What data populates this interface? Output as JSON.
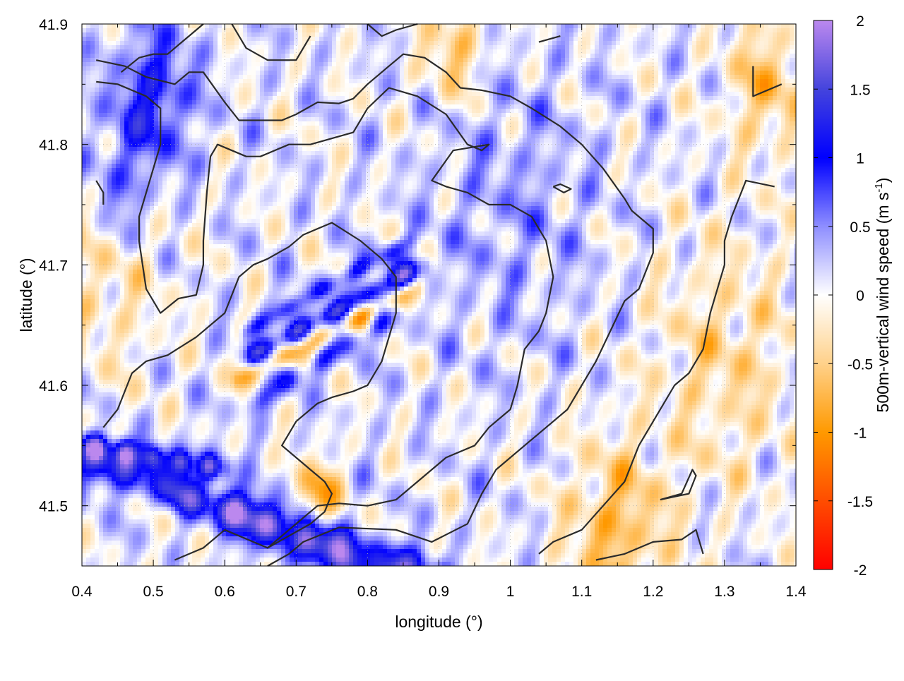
{
  "chart_data": {
    "type": "heatmap",
    "title": "",
    "xlabel": "longitude (°)",
    "ylabel": "latitude (°)",
    "xlim": [
      0.4,
      1.4
    ],
    "ylim": [
      41.45,
      41.9
    ],
    "x_ticks": [
      0.4,
      0.5,
      0.6,
      0.7,
      0.8,
      0.9,
      1.0,
      1.1,
      1.2,
      1.3,
      1.4
    ],
    "y_ticks": [
      41.5,
      41.6,
      41.7,
      41.8,
      41.9
    ],
    "grid": true,
    "colorbar": {
      "label_main": "500m-vertical wind speed (m s",
      "label_sup": "-1",
      "label_end": ")",
      "range": [
        -2,
        2
      ],
      "ticks": [
        -2,
        -1.5,
        -1,
        -0.5,
        0,
        0.5,
        1,
        1.5,
        2
      ],
      "stops": [
        {
          "value": -2,
          "color": "#ff0000"
        },
        {
          "value": -1,
          "color": "#ff9900"
        },
        {
          "value": -0.5,
          "color": "#ffd18a"
        },
        {
          "value": 0,
          "color": "#ffffff"
        },
        {
          "value": 0.5,
          "color": "#8e8eff"
        },
        {
          "value": 1,
          "color": "#0000ff"
        },
        {
          "value": 1.5,
          "color": "#4444dd"
        },
        {
          "value": 2,
          "color": "#bb88ee"
        }
      ]
    },
    "features": [
      {
        "kind": "band",
        "from": [
          0.41,
          41.535
        ],
        "to": [
          0.9,
          41.44
        ],
        "amp": 1.3,
        "width": 0.012
      },
      {
        "kind": "band",
        "from": [
          0.41,
          41.55
        ],
        "to": [
          0.6,
          41.53
        ],
        "amp": 1.6,
        "width": 0.008
      },
      {
        "kind": "band",
        "from": [
          0.6,
          41.5
        ],
        "to": [
          0.85,
          41.43
        ],
        "amp": 1.1,
        "width": 0.012
      },
      {
        "kind": "band",
        "from": [
          0.64,
          41.625
        ],
        "to": [
          0.88,
          41.7
        ],
        "amp": 1.4,
        "width": 0.007
      },
      {
        "kind": "band",
        "from": [
          0.62,
          41.605
        ],
        "to": [
          0.87,
          41.68
        ],
        "amp": -1.0,
        "width": 0.007
      },
      {
        "kind": "band",
        "from": [
          0.63,
          41.645
        ],
        "to": [
          0.86,
          41.72
        ],
        "amp": 0.9,
        "width": 0.006
      },
      {
        "kind": "band",
        "from": [
          0.64,
          41.585
        ],
        "to": [
          0.84,
          41.66
        ],
        "amp": 0.8,
        "width": 0.008
      },
      {
        "kind": "blob",
        "center": [
          1.15,
          41.48
        ],
        "amp": -0.8,
        "width": 0.05
      },
      {
        "kind": "blob",
        "center": [
          0.43,
          41.7
        ],
        "amp": -0.5,
        "width": 0.06
      },
      {
        "kind": "blob",
        "center": [
          1.3,
          41.62
        ],
        "amp": -0.5,
        "width": 0.07
      },
      {
        "kind": "blob",
        "center": [
          0.5,
          41.84
        ],
        "amp": 0.9,
        "width": 0.04
      },
      {
        "kind": "blob",
        "center": [
          0.45,
          41.76
        ],
        "amp": 0.6,
        "width": 0.04
      },
      {
        "kind": "blob",
        "center": [
          0.73,
          41.51
        ],
        "amp": -1.0,
        "width": 0.02
      },
      {
        "kind": "blob",
        "center": [
          0.92,
          41.88
        ],
        "amp": -0.7,
        "width": 0.03
      },
      {
        "kind": "blob",
        "center": [
          1.36,
          41.85
        ],
        "amp": -0.7,
        "width": 0.04
      },
      {
        "kind": "blob",
        "center": [
          1.0,
          41.75
        ],
        "amp": 0.3,
        "width": 0.08
      }
    ],
    "contours": [
      [
        [
          0.42,
          41.87
        ],
        [
          0.46,
          41.865
        ],
        [
          0.49,
          41.856
        ],
        [
          0.53,
          41.85
        ],
        [
          0.55,
          41.86
        ],
        [
          0.57,
          41.86
        ],
        [
          0.6,
          41.835
        ],
        [
          0.62,
          41.82
        ],
        [
          0.66,
          41.82
        ],
        [
          0.68,
          41.82
        ],
        [
          0.7,
          41.825
        ],
        [
          0.73,
          41.835
        ],
        [
          0.76,
          41.834
        ],
        [
          0.78,
          41.838
        ],
        [
          0.8,
          41.85
        ],
        [
          0.83,
          41.865
        ],
        [
          0.85,
          41.875
        ],
        [
          0.88,
          41.872
        ],
        [
          0.91,
          41.86
        ],
        [
          0.93,
          41.847
        ],
        [
          0.96,
          41.845
        ],
        [
          1.0,
          41.84
        ],
        [
          1.03,
          41.83
        ],
        [
          1.07,
          41.815
        ],
        [
          1.1,
          41.8
        ],
        [
          1.13,
          41.78
        ],
        [
          1.16,
          41.755
        ],
        [
          1.17,
          41.745
        ],
        [
          1.2,
          41.73
        ],
        [
          1.2,
          41.71
        ],
        [
          1.18,
          41.68
        ],
        [
          1.16,
          41.67
        ],
        [
          1.12,
          41.62
        ],
        [
          1.08,
          41.58
        ],
        [
          1.04,
          41.56
        ],
        [
          1.02,
          41.55
        ],
        [
          0.98,
          41.53
        ],
        [
          0.96,
          41.51
        ],
        [
          0.94,
          41.485
        ],
        [
          0.89,
          41.47
        ],
        [
          0.84,
          41.48
        ],
        [
          0.76,
          41.482
        ],
        [
          0.71,
          41.47
        ],
        [
          0.69,
          41.46
        ],
        [
          0.66,
          41.45
        ]
      ],
      [
        [
          0.42,
          41.852
        ],
        [
          0.45,
          41.85
        ],
        [
          0.49,
          41.84
        ],
        [
          0.51,
          41.83
        ],
        [
          0.51,
          41.8
        ],
        [
          0.5,
          41.78
        ],
        [
          0.48,
          41.74
        ],
        [
          0.48,
          41.72
        ],
        [
          0.485,
          41.7
        ],
        [
          0.49,
          41.68
        ],
        [
          0.51,
          41.66
        ],
        [
          0.535,
          41.672
        ],
        [
          0.56,
          41.675
        ],
        [
          0.57,
          41.7
        ],
        [
          0.57,
          41.72
        ],
        [
          0.575,
          41.76
        ],
        [
          0.58,
          41.79
        ],
        [
          0.59,
          41.8
        ],
        [
          0.61,
          41.795
        ],
        [
          0.63,
          41.79
        ],
        [
          0.65,
          41.79
        ],
        [
          0.69,
          41.8
        ],
        [
          0.72,
          41.8
        ],
        [
          0.78,
          41.81
        ],
        [
          0.8,
          41.83
        ],
        [
          0.83,
          41.847
        ],
        [
          0.87,
          41.84
        ],
        [
          0.91,
          41.825
        ],
        [
          0.94,
          41.8
        ],
        [
          0.96,
          41.795
        ],
        [
          0.97,
          41.8
        ],
        [
          0.92,
          41.795
        ],
        [
          0.89,
          41.77
        ],
        [
          0.91,
          41.765
        ],
        [
          0.94,
          41.76
        ],
        [
          0.97,
          41.75
        ],
        [
          1.0,
          41.75
        ],
        [
          1.03,
          41.74
        ],
        [
          1.05,
          41.72
        ],
        [
          1.06,
          41.69
        ],
        [
          1.05,
          41.66
        ],
        [
          1.04,
          41.645
        ],
        [
          1.02,
          41.63
        ],
        [
          1.01,
          41.6
        ],
        [
          1.0,
          41.58
        ],
        [
          0.97,
          41.565
        ],
        [
          0.95,
          41.55
        ],
        [
          0.91,
          41.54
        ],
        [
          0.87,
          41.52
        ],
        [
          0.84,
          41.505
        ],
        [
          0.8,
          41.5
        ],
        [
          0.76,
          41.502
        ],
        [
          0.73,
          41.5
        ],
        [
          0.71,
          41.49
        ],
        [
          0.69,
          41.48
        ],
        [
          0.66,
          41.465
        ]
      ],
      [
        [
          0.43,
          41.565
        ],
        [
          0.45,
          41.58
        ],
        [
          0.47,
          41.61
        ],
        [
          0.49,
          41.62
        ],
        [
          0.52,
          41.625
        ],
        [
          0.56,
          41.64
        ],
        [
          0.6,
          41.66
        ],
        [
          0.62,
          41.69
        ],
        [
          0.64,
          41.7
        ],
        [
          0.66,
          41.705
        ],
        [
          0.69,
          41.715
        ],
        [
          0.71,
          41.725
        ],
        [
          0.73,
          41.73
        ],
        [
          0.75,
          41.735
        ],
        [
          0.79,
          41.72
        ],
        [
          0.82,
          41.705
        ],
        [
          0.84,
          41.69
        ],
        [
          0.84,
          41.66
        ],
        [
          0.83,
          41.64
        ],
        [
          0.82,
          41.62
        ],
        [
          0.8,
          41.6
        ],
        [
          0.78,
          41.595
        ],
        [
          0.75,
          41.59
        ],
        [
          0.73,
          41.585
        ],
        [
          0.7,
          41.57
        ],
        [
          0.69,
          41.56
        ],
        [
          0.68,
          41.55
        ],
        [
          0.7,
          41.54
        ],
        [
          0.72,
          41.53
        ],
        [
          0.74,
          41.52
        ],
        [
          0.75,
          41.51
        ],
        [
          0.74,
          41.495
        ],
        [
          0.72,
          41.485
        ],
        [
          0.69,
          41.475
        ],
        [
          0.66,
          41.465
        ],
        [
          0.6,
          41.48
        ],
        [
          0.57,
          41.465
        ],
        [
          0.53,
          41.455
        ]
      ],
      [
        [
          0.455,
          41.86
        ],
        [
          0.48,
          41.872
        ],
        [
          0.5,
          41.875
        ],
        [
          0.52,
          41.875
        ],
        [
          0.54,
          41.885
        ],
        [
          0.57,
          41.9
        ]
      ],
      [
        [
          0.61,
          41.9
        ],
        [
          0.63,
          41.88
        ],
        [
          0.66,
          41.87
        ],
        [
          0.7,
          41.87
        ],
        [
          0.72,
          41.89
        ]
      ],
      [
        [
          0.8,
          41.9
        ],
        [
          0.82,
          41.89
        ],
        [
          0.84,
          41.895
        ],
        [
          0.87,
          41.9
        ]
      ],
      [
        [
          1.04,
          41.885
        ],
        [
          1.07,
          41.89
        ]
      ],
      [
        [
          1.34,
          41.865
        ],
        [
          1.34,
          41.84
        ],
        [
          1.38,
          41.85
        ]
      ],
      [
        [
          0.42,
          41.77
        ],
        [
          0.43,
          41.76
        ],
        [
          0.43,
          41.75
        ]
      ],
      [
        [
          1.06,
          41.765
        ],
        [
          1.075,
          41.76
        ],
        [
          1.085,
          41.763
        ],
        [
          1.07,
          41.767
        ],
        [
          1.06,
          41.765
        ]
      ],
      [
        [
          1.12,
          41.455
        ],
        [
          1.16,
          41.46
        ],
        [
          1.2,
          41.47
        ],
        [
          1.24,
          41.472
        ],
        [
          1.26,
          41.48
        ],
        [
          1.27,
          41.46
        ]
      ],
      [
        [
          1.21,
          41.505
        ],
        [
          1.25,
          41.51
        ],
        [
          1.26,
          41.525
        ],
        [
          1.255,
          41.53
        ],
        [
          1.24,
          41.51
        ],
        [
          1.21,
          41.505
        ]
      ],
      [
        [
          1.37,
          41.765
        ],
        [
          1.33,
          41.77
        ],
        [
          1.31,
          41.74
        ],
        [
          1.3,
          41.72
        ],
        [
          1.3,
          41.7
        ],
        [
          1.28,
          41.66
        ],
        [
          1.27,
          41.63
        ],
        [
          1.25,
          41.61
        ],
        [
          1.23,
          41.6
        ],
        [
          1.2,
          41.57
        ],
        [
          1.18,
          41.55
        ],
        [
          1.16,
          41.52
        ],
        [
          1.13,
          41.5
        ],
        [
          1.1,
          41.48
        ],
        [
          1.06,
          41.47
        ],
        [
          1.04,
          41.46
        ]
      ]
    ]
  }
}
